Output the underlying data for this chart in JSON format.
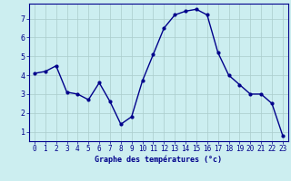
{
  "x": [
    0,
    1,
    2,
    3,
    4,
    5,
    6,
    7,
    8,
    9,
    10,
    11,
    12,
    13,
    14,
    15,
    16,
    17,
    18,
    19,
    20,
    21,
    22,
    23
  ],
  "y": [
    4.1,
    4.2,
    4.5,
    3.1,
    3.0,
    2.7,
    3.6,
    2.6,
    1.4,
    1.8,
    3.7,
    5.1,
    6.5,
    7.2,
    7.4,
    7.5,
    7.2,
    5.2,
    4.0,
    3.5,
    3.0,
    3.0,
    2.5,
    0.8
  ],
  "xlabel": "Graphe des températures (°c)",
  "ylabel_ticks": [
    1,
    2,
    3,
    4,
    5,
    6,
    7
  ],
  "xlim": [
    -0.5,
    23.5
  ],
  "ylim": [
    0.5,
    7.8
  ],
  "bg_color": "#cceef0",
  "line_color": "#00008b",
  "grid_color": "#aacccc",
  "axis_color": "#00008b",
  "label_color": "#00008b",
  "marker": "o",
  "markersize": 2.0,
  "linewidth": 1.0,
  "tick_fontsize": 5.5,
  "xlabel_fontsize": 6.0
}
